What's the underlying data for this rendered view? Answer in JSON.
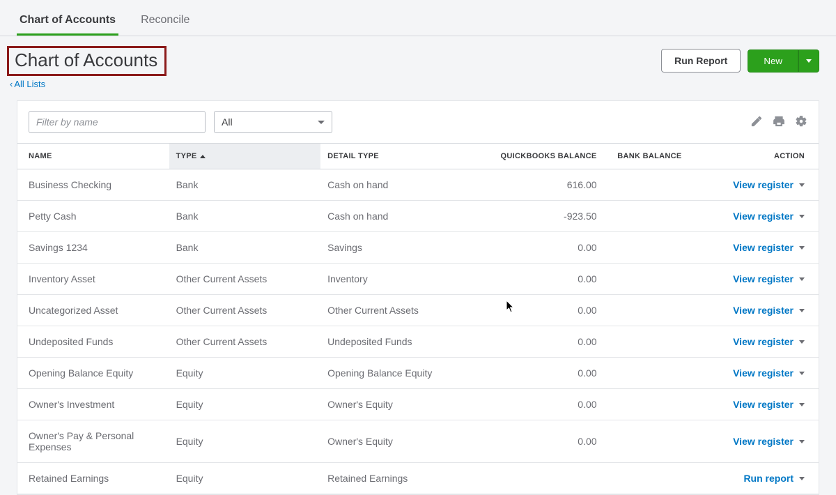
{
  "tabs": {
    "chart": "Chart of Accounts",
    "reconcile": "Reconcile"
  },
  "page_title": "Chart of Accounts",
  "back_link": "All Lists",
  "buttons": {
    "run_report": "Run Report",
    "new": "New"
  },
  "filter": {
    "placeholder": "Filter by name",
    "select_value": "All"
  },
  "columns": {
    "name": "NAME",
    "type": "TYPE",
    "detail": "DETAIL TYPE",
    "qb_balance": "QUICKBOOKS BALANCE",
    "bank_balance": "BANK BALANCE",
    "action": "ACTION"
  },
  "action_labels": {
    "view_register": "View register",
    "run_report": "Run report"
  },
  "rows": [
    {
      "name": "Business Checking",
      "type": "Bank",
      "detail": "Cash on hand",
      "qb": "616.00",
      "bank": "",
      "action": "view_register"
    },
    {
      "name": "Petty Cash",
      "type": "Bank",
      "detail": "Cash on hand",
      "qb": "-923.50",
      "bank": "",
      "action": "view_register"
    },
    {
      "name": "Savings 1234",
      "type": "Bank",
      "detail": "Savings",
      "qb": "0.00",
      "bank": "",
      "action": "view_register"
    },
    {
      "name": "Inventory Asset",
      "type": "Other Current Assets",
      "detail": "Inventory",
      "qb": "0.00",
      "bank": "",
      "action": "view_register"
    },
    {
      "name": "Uncategorized Asset",
      "type": "Other Current Assets",
      "detail": "Other Current Assets",
      "qb": "0.00",
      "bank": "",
      "action": "view_register"
    },
    {
      "name": "Undeposited Funds",
      "type": "Other Current Assets",
      "detail": "Undeposited Funds",
      "qb": "0.00",
      "bank": "",
      "action": "view_register"
    },
    {
      "name": "Opening Balance Equity",
      "type": "Equity",
      "detail": "Opening Balance Equity",
      "qb": "0.00",
      "bank": "",
      "action": "view_register"
    },
    {
      "name": "Owner's Investment",
      "type": "Equity",
      "detail": "Owner's Equity",
      "qb": "0.00",
      "bank": "",
      "action": "view_register"
    },
    {
      "name": "Owner's Pay & Personal Expenses",
      "type": "Equity",
      "detail": "Owner's Equity",
      "qb": "0.00",
      "bank": "",
      "action": "view_register"
    },
    {
      "name": "Retained Earnings",
      "type": "Equity",
      "detail": "Retained Earnings",
      "qb": "",
      "bank": "",
      "action": "run_report"
    }
  ],
  "colors": {
    "accent_green": "#2ca01c",
    "link_blue": "#0077c5",
    "highlight_border": "#8b1a1a",
    "background": "#f4f5f7"
  }
}
